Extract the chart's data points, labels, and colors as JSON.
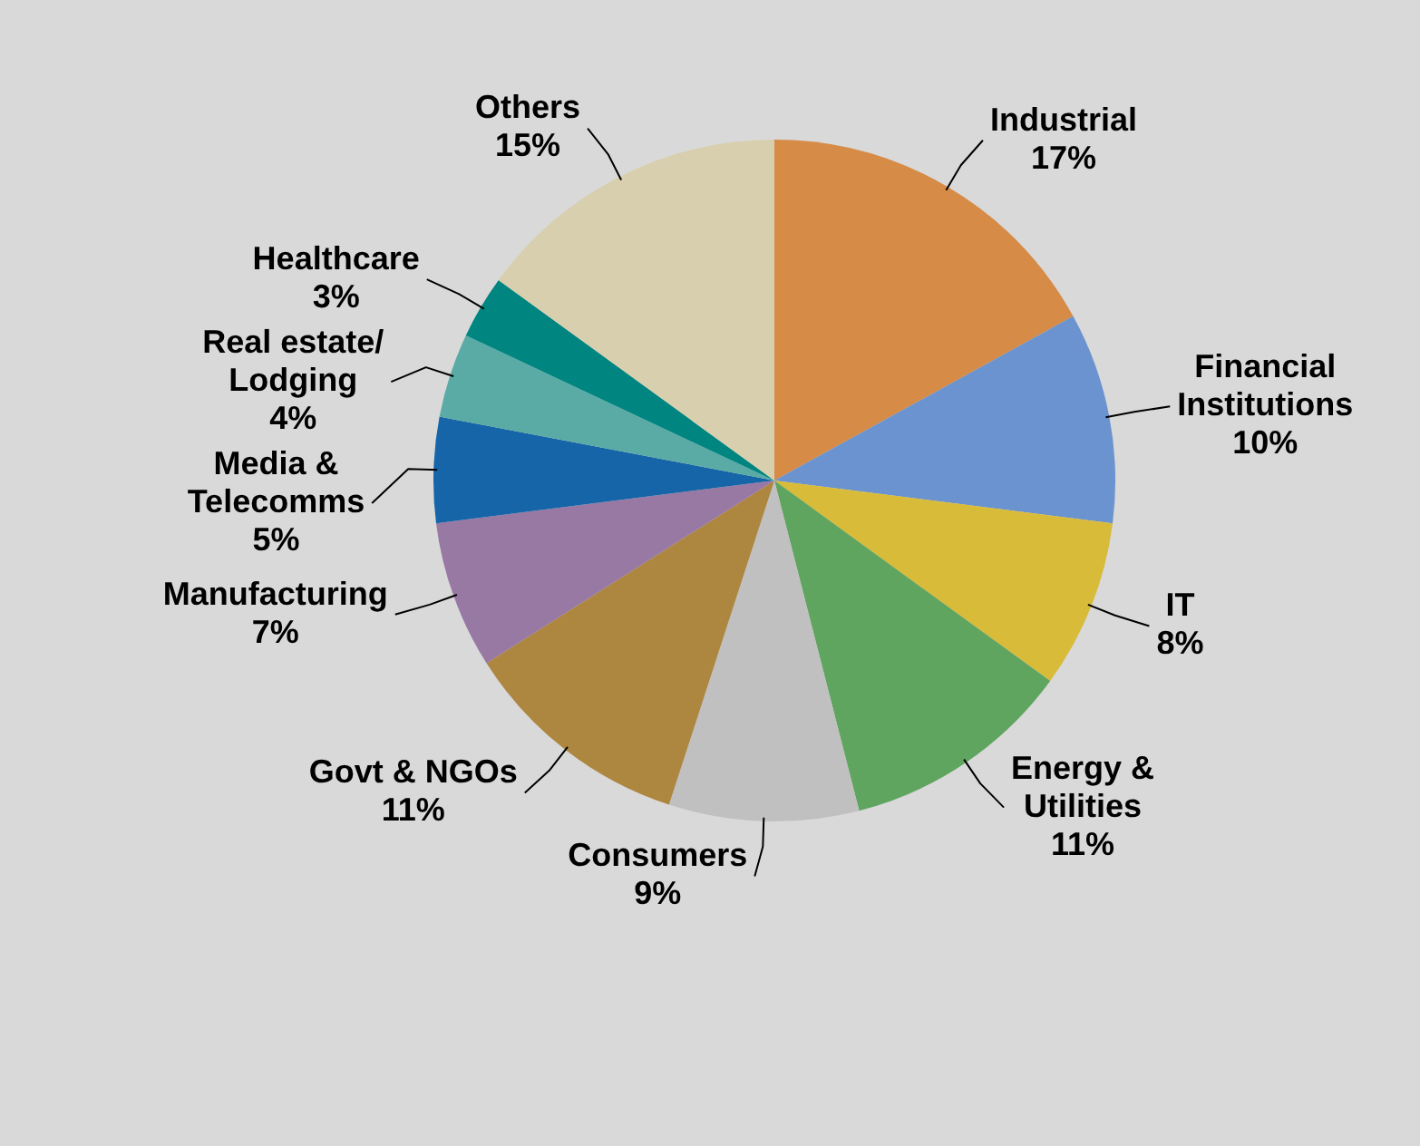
{
  "chart_data": {
    "type": "pie",
    "categories": [
      "Industrial",
      "Financial\nInstitutions",
      "IT",
      "Energy &\nUtilities",
      "Consumers",
      "Govt & NGOs",
      "Manufacturing",
      "Media &\nTelecomms",
      "Real estate/\nLodging",
      "Healthcare",
      "Others"
    ],
    "values": [
      17,
      10,
      8,
      11,
      9,
      11,
      7,
      5,
      4,
      3,
      15
    ],
    "value_labels": [
      "17%",
      "10%",
      "8%",
      "11%",
      "9%",
      "11%",
      "7%",
      "5%",
      "4%",
      "3%",
      "15%"
    ],
    "colors": [
      "#d68b47",
      "#6a93cf",
      "#d9bb3a",
      "#5fa55f",
      "#c0c0c0",
      "#ad8640",
      "#9879a3",
      "#1565a8",
      "#5aaba5",
      "#008580",
      "#d8cfae"
    ],
    "legend": false
  }
}
